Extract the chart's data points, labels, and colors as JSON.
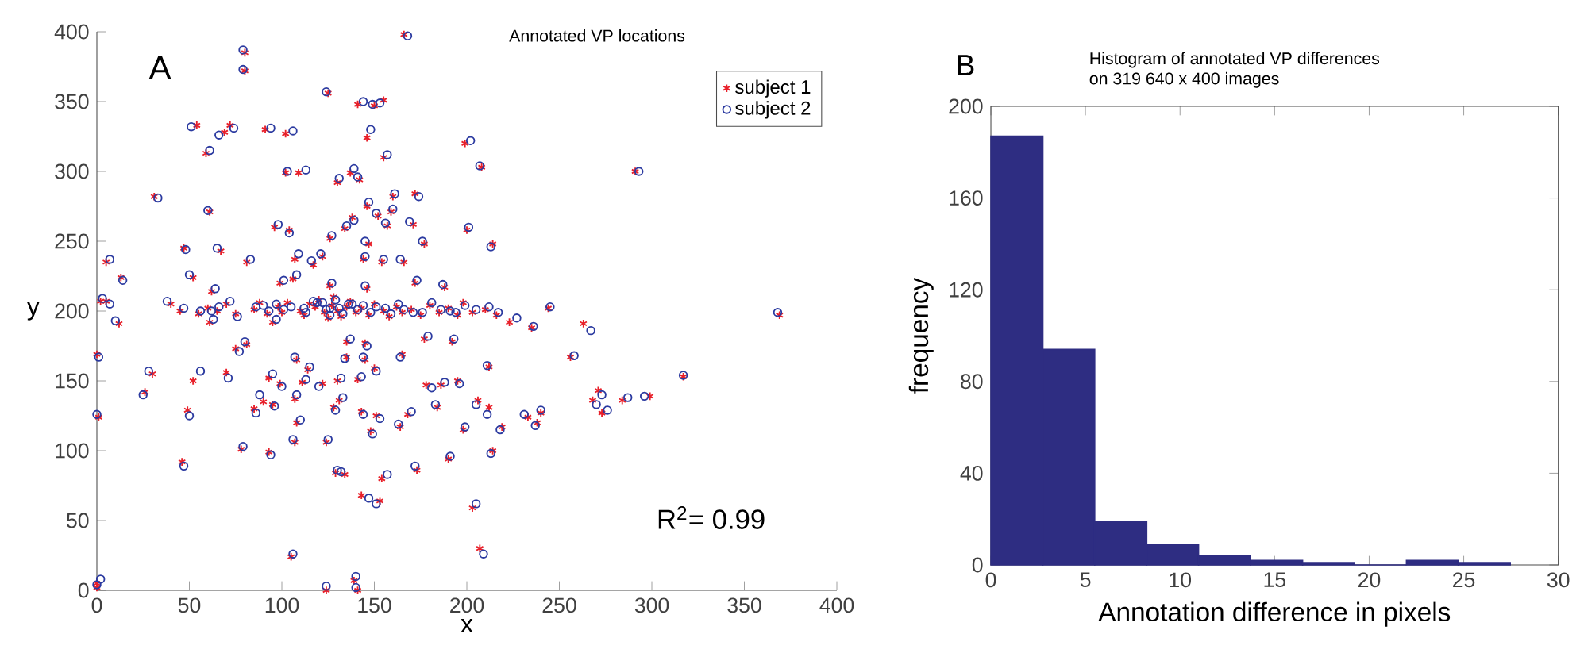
{
  "chart_data": [
    {
      "type": "scatter",
      "title": "Annotated VP locations",
      "xlabel": "x",
      "ylabel": "y",
      "xlim": [
        0,
        400
      ],
      "ylim": [
        0,
        400
      ],
      "xticks": [
        0,
        50,
        100,
        150,
        200,
        250,
        300,
        350,
        400
      ],
      "yticks": [
        0,
        50,
        100,
        150,
        200,
        250,
        300,
        350,
        400
      ],
      "legend": "top right",
      "grid": false,
      "annotations": [
        "A",
        "R$^{2}$= 0.99"
      ],
      "series": [
        {
          "name": "subject 1",
          "color": "#e8202a",
          "marker": "cross",
          "x": [
            0,
            0,
            2,
            5,
            0,
            1,
            5,
            13,
            12,
            26,
            30,
            31,
            47,
            46,
            49,
            52,
            52,
            54,
            59,
            61,
            62,
            61,
            67,
            69,
            72,
            70,
            75,
            78,
            80,
            80,
            81,
            81,
            85,
            90,
            91,
            93,
            93,
            95,
            95,
            96,
            99,
            99,
            102,
            102,
            104,
            105,
            106,
            107,
            107,
            107,
            108,
            108,
            109,
            111,
            114,
            117,
            118,
            122,
            122,
            124,
            124,
            125,
            126,
            126,
            128,
            129,
            130,
            130,
            131,
            134,
            134,
            135,
            135,
            137,
            138,
            139,
            141,
            141,
            141,
            142,
            143,
            143,
            144,
            145,
            145,
            146,
            146,
            146,
            147,
            148,
            150,
            150,
            151,
            152,
            153,
            154,
            154,
            155,
            155,
            157,
            159,
            160,
            164,
            165,
            166,
            166,
            168,
            171,
            172,
            172,
            173,
            177,
            177,
            178,
            184,
            186,
            188,
            190,
            192,
            195,
            198,
            199,
            200,
            203,
            206,
            207,
            208,
            212,
            212,
            214,
            214,
            216,
            219,
            223,
            233,
            235,
            238,
            240,
            244,
            256,
            263,
            268,
            271,
            273,
            284,
            291,
            299,
            317,
            369,
            40,
            45,
            55,
            60,
            65,
            70,
            75,
            85,
            88,
            92,
            98,
            100,
            103,
            110,
            112,
            115,
            120,
            123,
            125,
            127,
            128,
            130,
            132,
            135,
            137,
            140,
            143,
            147,
            150,
            155,
            158,
            162,
            165,
            170,
            175,
            180,
            185,
            190,
            195,
            198,
            203,
            210
          ],
          "values": [
            2,
            5,
            207,
            207,
            169,
            124,
            235,
            224,
            191,
            142,
            155,
            282,
            245,
            92,
            129,
            150,
            224,
            333,
            313,
            271,
            214,
            192,
            243,
            328,
            333,
            156,
            173,
            101,
            385,
            372,
            235,
            176,
            130,
            135,
            330,
            99,
            152,
            133,
            192,
            260,
            148,
            220,
            327,
            299,
            258,
            24,
            223,
            237,
            106,
            137,
            120,
            165,
            299,
            149,
            158,
            233,
            203,
            239,
            148,
            0,
            106,
            356,
            252,
            218,
            131,
            84,
            292,
            150,
            136,
            259,
            83,
            167,
            178,
            299,
            267,
            7,
            0,
            348,
            151,
            294,
            68,
            128,
            237,
            165,
            177,
            275,
            216,
            324,
            248,
            114,
            347,
            159,
            125,
            268,
            64,
            80,
            235,
            351,
            310,
            261,
            271,
            282,
            117,
            169,
            398,
            235,
            126,
            262,
            284,
            220,
            86,
            248,
            180,
            147,
            131,
            147,
            217,
            94,
            178,
            150,
            115,
            320,
            258,
            59,
            136,
            30,
            303,
            160,
            131,
            248,
            100,
            197,
            117,
            192,
            124,
            188,
            120,
            127,
            202,
            167,
            191,
            136,
            143,
            127,
            136,
            300,
            139,
            153,
            197,
            205,
            200,
            198,
            202,
            200,
            205,
            198,
            201,
            206,
            198,
            203,
            199,
            206,
            200,
            197,
            205,
            208,
            199,
            195,
            204,
            210,
            200,
            196,
            203,
            207,
            199,
            202,
            197,
            205,
            200,
            196,
            203,
            199,
            201,
            197,
            204,
            199,
            202,
            197,
            206,
            199,
            201
          ]
        },
        {
          "name": "subject 2",
          "color": "#2b3aa0",
          "marker": "circle",
          "x": [
            0,
            2,
            3,
            7,
            1,
            0,
            7,
            14,
            10,
            25,
            28,
            33,
            48,
            47,
            50,
            56,
            50,
            51,
            61,
            60,
            64,
            63,
            65,
            66,
            74,
            71,
            77,
            79,
            79,
            79,
            83,
            80,
            86,
            88,
            94,
            94,
            95,
            96,
            97,
            98,
            100,
            101,
            106,
            103,
            104,
            106,
            108,
            109,
            106,
            108,
            110,
            107,
            113,
            113,
            115,
            116,
            119,
            121,
            120,
            124,
            125,
            124,
            127,
            127,
            129,
            130,
            131,
            132,
            133,
            135,
            132,
            134,
            137,
            139,
            139,
            140,
            140,
            144,
            143,
            141,
            147,
            144,
            145,
            144,
            146,
            147,
            145,
            148,
            145,
            149,
            149,
            151,
            153,
            151,
            151,
            157,
            155,
            153,
            157,
            156,
            160,
            161,
            163,
            164,
            168,
            164,
            170,
            169,
            174,
            173,
            172,
            176,
            179,
            181,
            183,
            188,
            187,
            191,
            193,
            196,
            199,
            202,
            201,
            205,
            205,
            209,
            207,
            211,
            211,
            213,
            213,
            217,
            218,
            227,
            231,
            236,
            237,
            240,
            245,
            258,
            267,
            270,
            273,
            276,
            287,
            293,
            296,
            317,
            368,
            38,
            47,
            56,
            62,
            66,
            72,
            76,
            86,
            90,
            93,
            97,
            101,
            105,
            112,
            113,
            117,
            122,
            124,
            126,
            126,
            129,
            131,
            133,
            136,
            138,
            141,
            144,
            148,
            151,
            156,
            159,
            163,
            166,
            171,
            176,
            181,
            186,
            191,
            194,
            199,
            205,
            212
          ],
          "values": [
            4,
            8,
            209,
            205,
            167,
            126,
            237,
            222,
            193,
            140,
            157,
            281,
            244,
            89,
            125,
            157,
            226,
            332,
            315,
            272,
            216,
            194,
            245,
            326,
            331,
            152,
            171,
            103,
            387,
            373,
            237,
            178,
            127,
            140,
            331,
            97,
            155,
            132,
            194,
            262,
            146,
            222,
            329,
            300,
            256,
            26,
            226,
            241,
            108,
            140,
            122,
            167,
            301,
            151,
            160,
            236,
            206,
            241,
            146,
            3,
            108,
            357,
            254,
            220,
            129,
            86,
            295,
            152,
            138,
            261,
            85,
            166,
            180,
            302,
            265,
            10,
            2,
            350,
            153,
            296,
            66,
            126,
            239,
            167,
            175,
            278,
            218,
            330,
            250,
            112,
            348,
            157,
            123,
            270,
            62,
            83,
            237,
            349,
            312,
            263,
            273,
            284,
            119,
            167,
            397,
            237,
            128,
            264,
            282,
            222,
            89,
            250,
            182,
            145,
            133,
            149,
            219,
            96,
            180,
            148,
            117,
            322,
            260,
            62,
            133,
            26,
            304,
            161,
            126,
            246,
            98,
            199,
            115,
            195,
            126,
            189,
            118,
            129,
            203,
            168,
            186,
            133,
            140,
            129,
            138,
            300,
            139,
            154,
            199,
            207,
            202,
            200,
            200,
            203,
            207,
            196,
            203,
            204,
            200,
            205,
            201,
            203,
            202,
            199,
            207,
            206,
            201,
            197,
            202,
            208,
            202,
            198,
            205,
            205,
            201,
            204,
            199,
            203,
            202,
            198,
            205,
            201,
            199,
            199,
            206,
            201,
            200,
            199,
            204,
            201,
            203
          ]
        }
      ]
    },
    {
      "type": "histogram",
      "title": "Histogram of annotated VP differences",
      "subtitle": "on 319  640 x 400 images",
      "xlabel": "Annotation difference in pixels",
      "ylabel": "frequency",
      "xlim": [
        0,
        30
      ],
      "ylim": [
        0,
        200
      ],
      "xticks": [
        0,
        5,
        10,
        15,
        20,
        25,
        30
      ],
      "yticks": [
        0,
        40,
        80,
        120,
        160,
        200
      ],
      "grid": false,
      "color": "#2e2d82",
      "annotations": [
        "B"
      ],
      "bins": [
        0,
        2.75,
        5.49,
        8.24,
        10.98,
        13.73,
        16.48,
        19.22,
        21.97,
        24.71,
        27.46
      ],
      "values": [
        187,
        94,
        19,
        9,
        4,
        2,
        1,
        0,
        2,
        1
      ]
    }
  ]
}
